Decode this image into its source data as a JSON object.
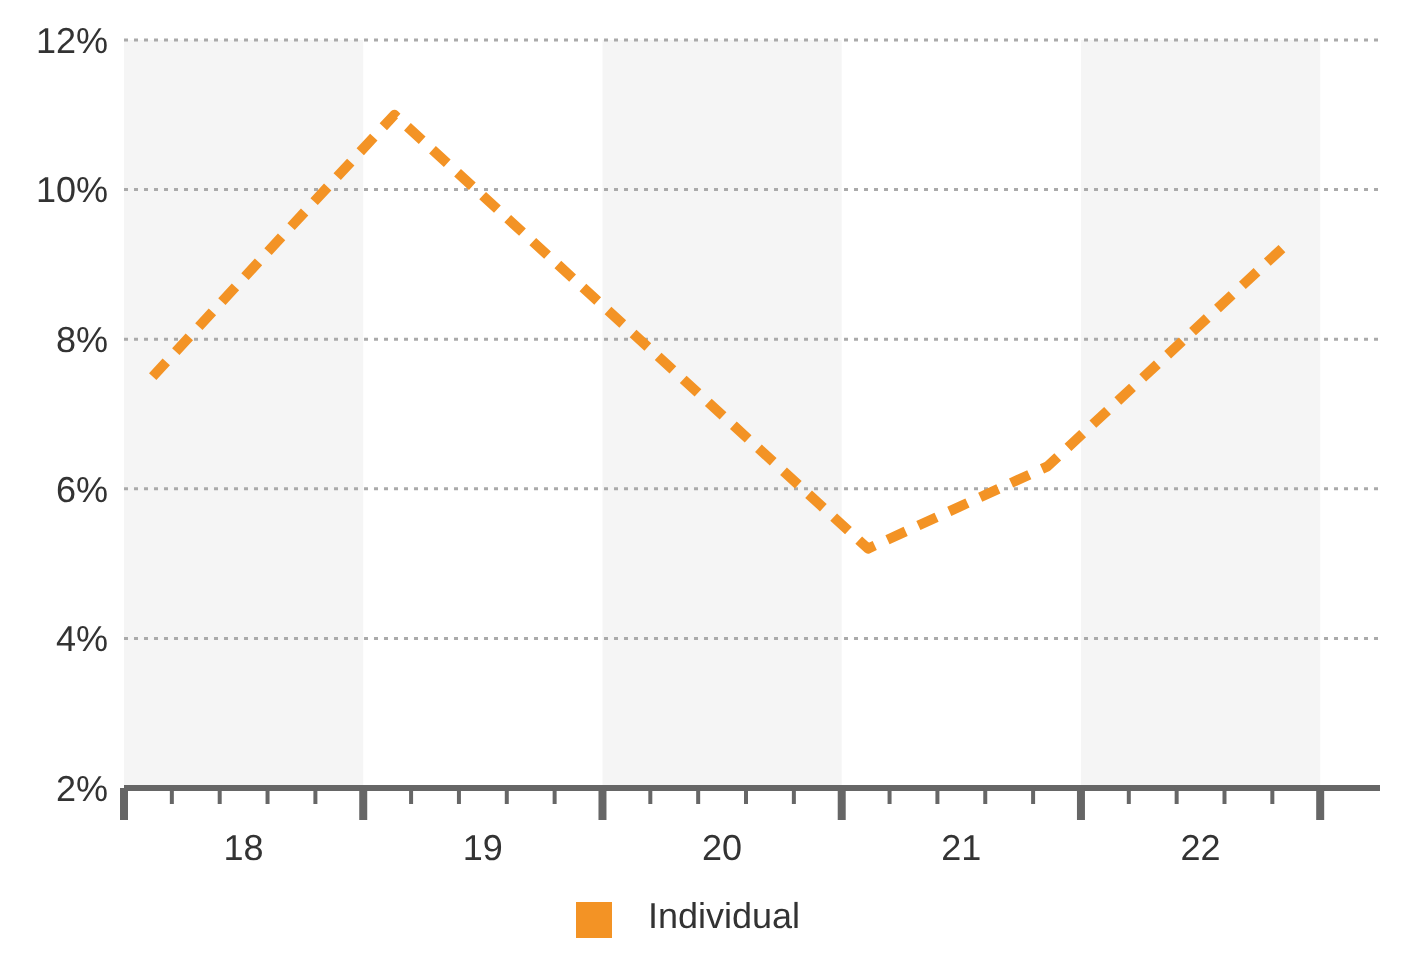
{
  "chart_data": {
    "type": "line",
    "x": [
      18.12,
      19.13,
      21.11,
      21.86,
      22.87
    ],
    "series": [
      {
        "name": "Individual",
        "color": "#f39325",
        "values": [
          7.5,
          11.0,
          5.2,
          6.3,
          9.3
        ]
      }
    ],
    "xlim": [
      18,
      23.25
    ],
    "xticks": [
      {
        "value": 18,
        "label": null
      },
      {
        "value": 18.2,
        "label": null
      },
      {
        "value": 18.4,
        "label": null
      },
      {
        "value": 18.5,
        "label": "18"
      },
      {
        "value": 18.6,
        "label": null
      },
      {
        "value": 18.8,
        "label": null
      },
      {
        "value": 19,
        "label": null
      },
      {
        "value": 19.2,
        "label": null
      },
      {
        "value": 19.4,
        "label": null
      },
      {
        "value": 19.5,
        "label": "19"
      },
      {
        "value": 19.6,
        "label": null
      },
      {
        "value": 19.8,
        "label": null
      },
      {
        "value": 20,
        "label": null
      },
      {
        "value": 20.2,
        "label": null
      },
      {
        "value": 20.4,
        "label": null
      },
      {
        "value": 20.5,
        "label": "20"
      },
      {
        "value": 20.6,
        "label": null
      },
      {
        "value": 20.8,
        "label": null
      },
      {
        "value": 21,
        "label": null
      },
      {
        "value": 21.2,
        "label": null
      },
      {
        "value": 21.4,
        "label": null
      },
      {
        "value": 21.5,
        "label": "21"
      },
      {
        "value": 21.6,
        "label": null
      },
      {
        "value": 21.8,
        "label": null
      },
      {
        "value": 22,
        "label": null
      },
      {
        "value": 22.2,
        "label": null
      },
      {
        "value": 22.4,
        "label": null
      },
      {
        "value": 22.5,
        "label": "22"
      },
      {
        "value": 22.6,
        "label": null
      },
      {
        "value": 22.8,
        "label": null
      },
      {
        "value": 23,
        "label": null
      }
    ],
    "ylim": [
      2,
      12
    ],
    "yticks": [
      {
        "value": 2,
        "label": "2%"
      },
      {
        "value": 4,
        "label": "4%"
      },
      {
        "value": 6,
        "label": "6%"
      },
      {
        "value": 8,
        "label": "8%"
      },
      {
        "value": 10,
        "label": "10%"
      },
      {
        "value": 12,
        "label": "12%"
      }
    ],
    "bands": [
      {
        "axis": "x",
        "from": 18,
        "to": 19,
        "color": "#f5f5f5"
      },
      {
        "axis": "x",
        "from": 20,
        "to": 21,
        "color": "#f5f5f5"
      },
      {
        "axis": "x",
        "from": 22,
        "to": 23,
        "color": "#f5f5f5"
      }
    ],
    "grid": "y",
    "legend": "bottom",
    "marker": "none",
    "line_style": "dashed"
  }
}
